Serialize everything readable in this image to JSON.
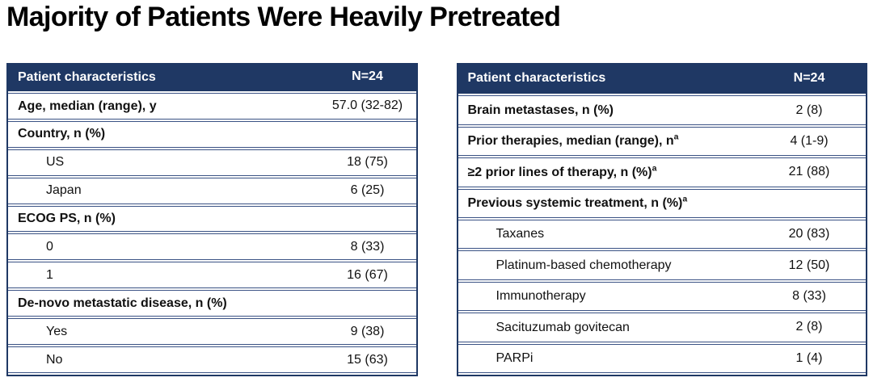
{
  "title": "Majority of Patients Were Heavily Pretreated",
  "colors": {
    "header_bg": "#1F3864",
    "header_text": "#FFFFFF",
    "table_border": "#1F3864",
    "row_line": "#3A5284"
  },
  "tables": [
    {
      "name": "patient-characteristics-demographics",
      "header": {
        "label": "Patient characteristics",
        "value": "N=24"
      },
      "rows": [
        {
          "label": "Age, median (range), y",
          "value": "57.0 (32-82)",
          "style": "bold"
        },
        {
          "label": "Country, n (%)",
          "value": "",
          "style": "bold"
        },
        {
          "label": "US",
          "value": "18 (75)",
          "style": "indent"
        },
        {
          "label": "Japan",
          "value": "6 (25)",
          "style": "indent"
        },
        {
          "label": "ECOG PS, n (%)",
          "value": "",
          "style": "bold"
        },
        {
          "label": "0",
          "value": "8 (33)",
          "style": "indent"
        },
        {
          "label": "1",
          "value": "16 (67)",
          "style": "indent"
        },
        {
          "label": "De-novo metastatic disease, n (%)",
          "value": "",
          "style": "bold"
        },
        {
          "label": "Yes",
          "value": "9 (38)",
          "style": "indent"
        },
        {
          "label": "No",
          "value": "15 (63)",
          "style": "indent"
        }
      ]
    },
    {
      "name": "patient-characteristics-prior-treatment",
      "header": {
        "label": "Patient characteristics",
        "value": "N=24"
      },
      "rows": [
        {
          "label": "Brain metastases, n (%)",
          "value": "2 (8)",
          "style": "bold"
        },
        {
          "label": "Prior therapies, median (range), n",
          "sup": "a",
          "value": "4 (1-9)",
          "style": "bold"
        },
        {
          "label": "≥2 prior lines of therapy, n (%)",
          "sup": "a",
          "value": "21 (88)",
          "style": "bold"
        },
        {
          "label": "Previous systemic treatment, n (%)",
          "sup": "a",
          "value": "",
          "style": "bold"
        },
        {
          "label": "Taxanes",
          "value": "20 (83)",
          "style": "indent"
        },
        {
          "label": "Platinum-based chemotherapy",
          "value": "12 (50)",
          "style": "indent"
        },
        {
          "label": "Immunotherapy",
          "value": "8 (33)",
          "style": "indent"
        },
        {
          "label": "Sacituzumab govitecan",
          "value": "2 (8)",
          "style": "indent"
        },
        {
          "label": "PARPi",
          "value": "1 (4)",
          "style": "indent"
        }
      ]
    }
  ]
}
